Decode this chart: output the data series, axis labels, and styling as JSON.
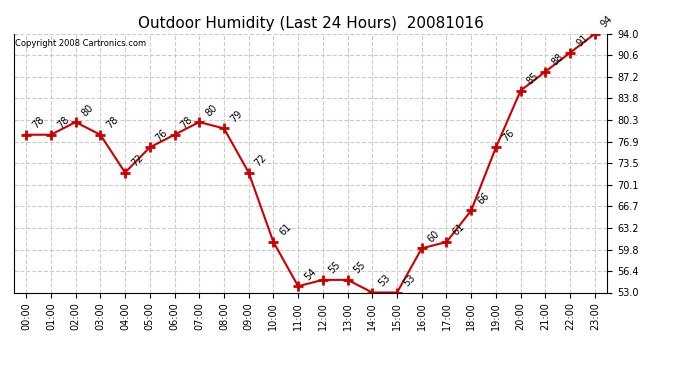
{
  "title": "Outdoor Humidity (Last 24 Hours)  20081016",
  "copyright": "Copyright 2008 Cartronics.com",
  "hours": [
    "00:00",
    "01:00",
    "02:00",
    "03:00",
    "04:00",
    "05:00",
    "06:00",
    "07:00",
    "08:00",
    "09:00",
    "10:00",
    "11:00",
    "12:00",
    "13:00",
    "14:00",
    "15:00",
    "16:00",
    "17:00",
    "18:00",
    "19:00",
    "20:00",
    "21:00",
    "22:00",
    "23:00"
  ],
  "values": [
    78,
    78,
    80,
    78,
    72,
    76,
    78,
    80,
    79,
    72,
    61,
    54,
    55,
    55,
    53,
    53,
    60,
    61,
    66,
    76,
    85,
    88,
    91,
    94
  ],
  "ylim": [
    53.0,
    94.0
  ],
  "yticks": [
    53.0,
    56.4,
    59.8,
    63.2,
    66.7,
    70.1,
    73.5,
    76.9,
    80.3,
    83.8,
    87.2,
    90.6,
    94.0
  ],
  "line_color": "#cc0000",
  "marker_color": "#cc0000",
  "fig_bg": "#ffffff",
  "plot_bg": "#ffffff",
  "grid_color": "#cccccc",
  "title_fontsize": 11,
  "label_fontsize": 7,
  "annotation_fontsize": 7,
  "copyright_fontsize": 6
}
